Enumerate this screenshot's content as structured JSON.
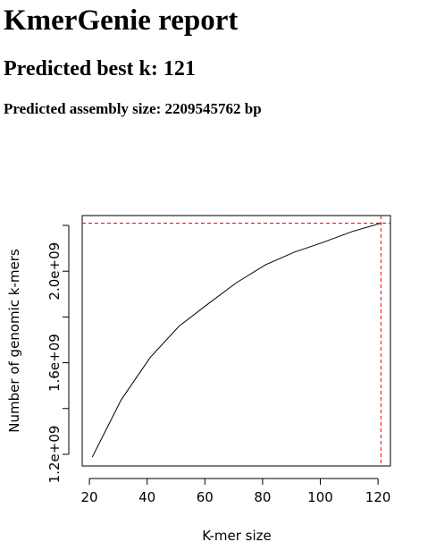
{
  "header": {
    "title": "KmerGenie report",
    "subtitle": "Predicted best k: 121",
    "assembly": "Predicted assembly size: 2209545762 bp"
  },
  "chart_data": {
    "type": "line",
    "x_label": "K-mer size",
    "y_label": "Number of genomic k-mers",
    "x": [
      21,
      31,
      41,
      51,
      61,
      71,
      81,
      91,
      101,
      111,
      121
    ],
    "values": [
      1188000000,
      1438000000,
      1622000000,
      1759000000,
      1856000000,
      1950000000,
      2028000000,
      2083000000,
      2126000000,
      2173000000,
      2209545762
    ],
    "color": "#000000",
    "xlim": [
      17.5,
      124.3
    ],
    "ylim": [
      1149000000,
      2243000000
    ],
    "xticks": [
      20,
      40,
      60,
      80,
      100,
      120
    ],
    "yticks": [
      {
        "value": 1200000000,
        "label": "1.2e+09"
      },
      {
        "value": 1600000000,
        "label": "1.6e+09"
      },
      {
        "value": 2000000000,
        "label": "2.0e+09"
      }
    ],
    "yticks_minor": [
      1400000000,
      1800000000,
      2200000000
    ],
    "marker": {
      "x": 121,
      "y": 2209545762,
      "color": "#ff0000"
    }
  }
}
